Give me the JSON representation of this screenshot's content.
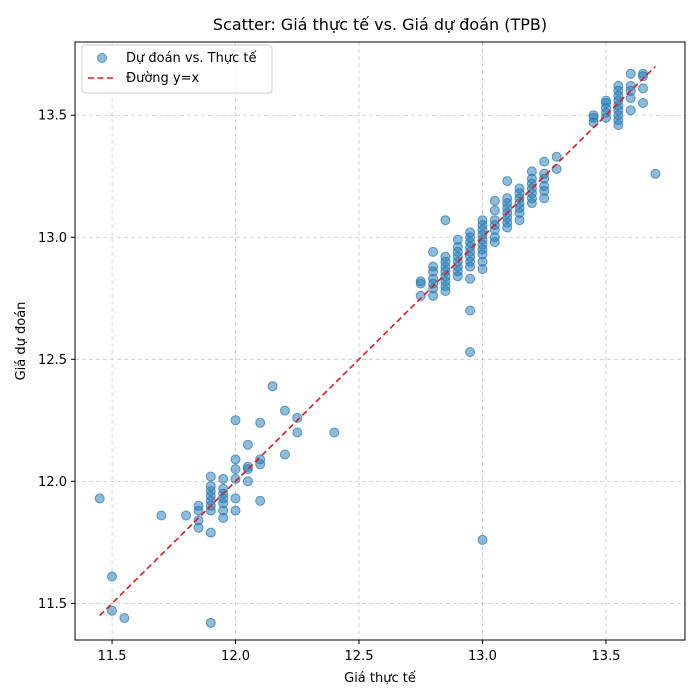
{
  "chart_data": {
    "type": "scatter",
    "title": "Scatter: Giá thực tế vs. Giá dự đoán (TPB)",
    "xlabel": "Giá thực tế",
    "ylabel": "Giá dự đoán",
    "xlim": [
      11.35,
      13.82
    ],
    "ylim": [
      11.35,
      13.8
    ],
    "x_ticks": [
      11.5,
      12.0,
      12.5,
      13.0,
      13.5
    ],
    "y_ticks": [
      11.5,
      12.0,
      12.5,
      13.0,
      13.5
    ],
    "x_tick_labels": [
      "11.5",
      "12.0",
      "12.5",
      "13.0",
      "13.5"
    ],
    "y_tick_labels": [
      "11.5",
      "12.0",
      "12.5",
      "13.0",
      "13.5"
    ],
    "grid": true,
    "legend_position": "top-left",
    "series": [
      {
        "name": "Dự đoán vs. Thực tế",
        "kind": "scatter",
        "color": "#1f77b4",
        "points": [
          [
            11.45,
            11.93
          ],
          [
            11.5,
            11.61
          ],
          [
            11.5,
            11.47
          ],
          [
            11.55,
            11.44
          ],
          [
            11.7,
            11.86
          ],
          [
            11.8,
            11.86
          ],
          [
            11.85,
            11.88
          ],
          [
            11.85,
            11.9
          ],
          [
            11.85,
            11.81
          ],
          [
            11.85,
            11.84
          ],
          [
            11.9,
            12.02
          ],
          [
            11.9,
            11.98
          ],
          [
            11.9,
            11.96
          ],
          [
            11.9,
            11.94
          ],
          [
            11.9,
            11.92
          ],
          [
            11.9,
            11.9
          ],
          [
            11.9,
            11.88
          ],
          [
            11.9,
            11.79
          ],
          [
            11.9,
            11.42
          ],
          [
            11.95,
            12.01
          ],
          [
            11.95,
            11.97
          ],
          [
            11.95,
            11.95
          ],
          [
            11.95,
            11.93
          ],
          [
            11.95,
            11.91
          ],
          [
            11.95,
            11.88
          ],
          [
            11.95,
            11.85
          ],
          [
            12.0,
            12.25
          ],
          [
            12.0,
            12.09
          ],
          [
            12.0,
            12.05
          ],
          [
            12.0,
            12.01
          ],
          [
            12.0,
            11.93
          ],
          [
            12.0,
            11.88
          ],
          [
            12.05,
            12.15
          ],
          [
            12.05,
            12.06
          ],
          [
            12.05,
            12.05
          ],
          [
            12.05,
            12.0
          ],
          [
            12.1,
            12.24
          ],
          [
            12.1,
            12.09
          ],
          [
            12.1,
            12.07
          ],
          [
            12.1,
            11.92
          ],
          [
            12.15,
            12.39
          ],
          [
            12.2,
            12.29
          ],
          [
            12.2,
            12.11
          ],
          [
            12.25,
            12.26
          ],
          [
            12.25,
            12.2
          ],
          [
            12.4,
            12.2
          ],
          [
            12.75,
            12.82
          ],
          [
            12.75,
            12.81
          ],
          [
            12.75,
            12.76
          ],
          [
            12.8,
            12.94
          ],
          [
            12.8,
            12.88
          ],
          [
            12.8,
            12.86
          ],
          [
            12.8,
            12.83
          ],
          [
            12.8,
            12.81
          ],
          [
            12.8,
            12.79
          ],
          [
            12.8,
            12.76
          ],
          [
            12.85,
            13.07
          ],
          [
            12.85,
            12.92
          ],
          [
            12.85,
            12.9
          ],
          [
            12.85,
            12.88
          ],
          [
            12.85,
            12.86
          ],
          [
            12.85,
            12.84
          ],
          [
            12.85,
            12.82
          ],
          [
            12.85,
            12.8
          ],
          [
            12.85,
            12.78
          ],
          [
            12.9,
            12.99
          ],
          [
            12.9,
            12.96
          ],
          [
            12.9,
            12.94
          ],
          [
            12.9,
            12.92
          ],
          [
            12.9,
            12.9
          ],
          [
            12.9,
            12.88
          ],
          [
            12.9,
            12.86
          ],
          [
            12.9,
            12.84
          ],
          [
            12.95,
            13.02
          ],
          [
            12.95,
            13.0
          ],
          [
            12.95,
            12.98
          ],
          [
            12.95,
            12.96
          ],
          [
            12.95,
            12.94
          ],
          [
            12.95,
            12.92
          ],
          [
            12.95,
            12.9
          ],
          [
            12.95,
            12.88
          ],
          [
            12.95,
            12.83
          ],
          [
            12.95,
            12.7
          ],
          [
            12.95,
            12.53
          ],
          [
            13.0,
            13.07
          ],
          [
            13.0,
            13.05
          ],
          [
            13.0,
            13.03
          ],
          [
            13.0,
            13.01
          ],
          [
            13.0,
            12.99
          ],
          [
            13.0,
            12.97
          ],
          [
            13.0,
            12.95
          ],
          [
            13.0,
            12.93
          ],
          [
            13.0,
            12.9
          ],
          [
            13.0,
            12.87
          ],
          [
            13.0,
            11.76
          ],
          [
            13.05,
            13.15
          ],
          [
            13.05,
            13.11
          ],
          [
            13.05,
            13.07
          ],
          [
            13.05,
            13.05
          ],
          [
            13.05,
            13.03
          ],
          [
            13.05,
            13.0
          ],
          [
            13.05,
            12.98
          ],
          [
            13.1,
            13.23
          ],
          [
            13.1,
            13.16
          ],
          [
            13.1,
            13.14
          ],
          [
            13.1,
            13.12
          ],
          [
            13.1,
            13.1
          ],
          [
            13.1,
            13.08
          ],
          [
            13.1,
            13.06
          ],
          [
            13.1,
            13.04
          ],
          [
            13.15,
            13.2
          ],
          [
            13.15,
            13.18
          ],
          [
            13.15,
            13.16
          ],
          [
            13.15,
            13.14
          ],
          [
            13.15,
            13.12
          ],
          [
            13.15,
            13.1
          ],
          [
            13.15,
            13.07
          ],
          [
            13.2,
            13.27
          ],
          [
            13.2,
            13.24
          ],
          [
            13.2,
            13.22
          ],
          [
            13.2,
            13.2
          ],
          [
            13.2,
            13.18
          ],
          [
            13.2,
            13.16
          ],
          [
            13.2,
            13.14
          ],
          [
            13.25,
            13.31
          ],
          [
            13.25,
            13.26
          ],
          [
            13.25,
            13.24
          ],
          [
            13.25,
            13.21
          ],
          [
            13.25,
            13.19
          ],
          [
            13.25,
            13.16
          ],
          [
            13.3,
            13.33
          ],
          [
            13.3,
            13.28
          ],
          [
            13.45,
            13.5
          ],
          [
            13.45,
            13.49
          ],
          [
            13.45,
            13.47
          ],
          [
            13.5,
            13.56
          ],
          [
            13.5,
            13.55
          ],
          [
            13.5,
            13.53
          ],
          [
            13.5,
            13.51
          ],
          [
            13.5,
            13.49
          ],
          [
            13.55,
            13.62
          ],
          [
            13.55,
            13.6
          ],
          [
            13.55,
            13.58
          ],
          [
            13.55,
            13.56
          ],
          [
            13.55,
            13.54
          ],
          [
            13.55,
            13.52
          ],
          [
            13.55,
            13.5
          ],
          [
            13.55,
            13.48
          ],
          [
            13.55,
            13.46
          ],
          [
            13.6,
            13.67
          ],
          [
            13.6,
            13.62
          ],
          [
            13.6,
            13.6
          ],
          [
            13.6,
            13.57
          ],
          [
            13.6,
            13.52
          ],
          [
            13.65,
            13.67
          ],
          [
            13.65,
            13.66
          ],
          [
            13.65,
            13.61
          ],
          [
            13.65,
            13.55
          ],
          [
            13.7,
            13.26
          ]
        ]
      },
      {
        "name": "Đường y=x",
        "kind": "line",
        "style": "dashed",
        "color": "#e41a1c",
        "x": [
          11.45,
          13.7
        ],
        "y": [
          11.45,
          13.7
        ]
      }
    ]
  }
}
